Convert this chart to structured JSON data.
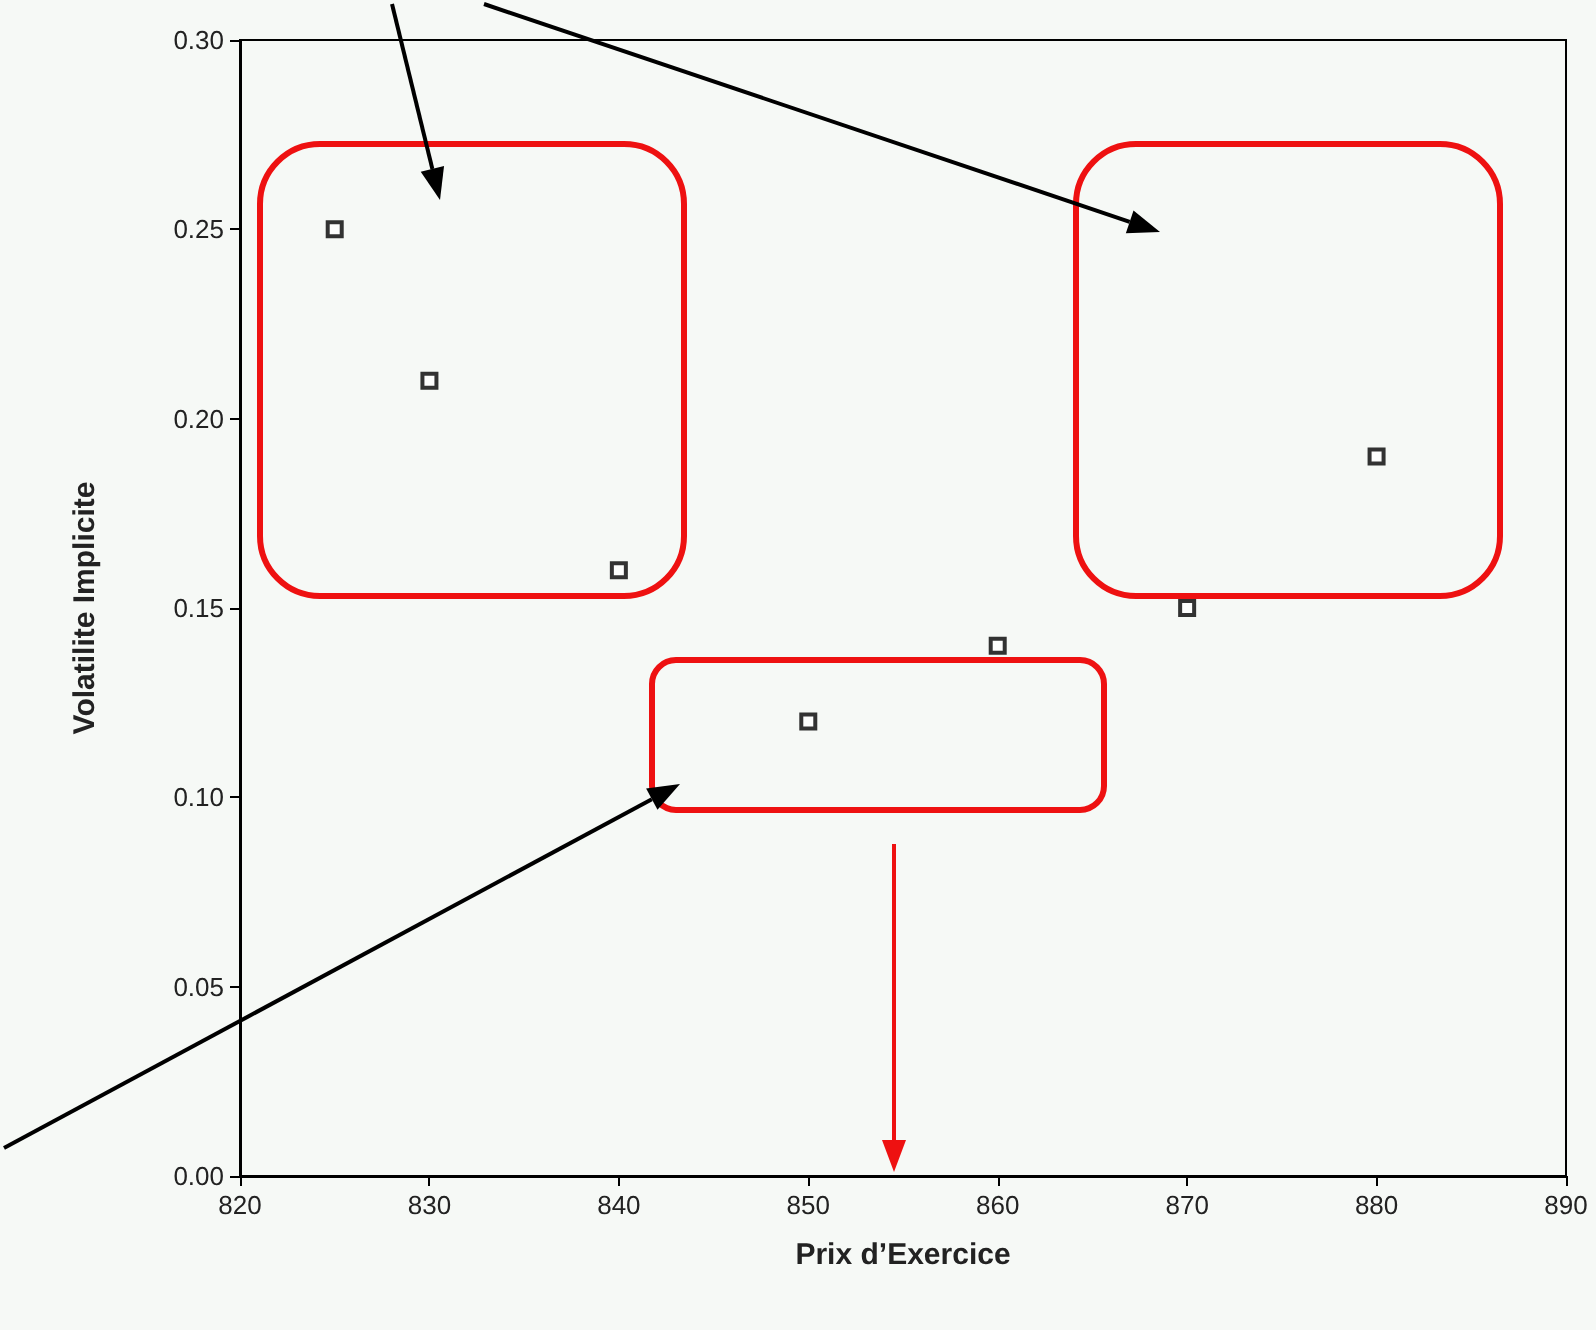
{
  "chart_data": {
    "type": "scatter",
    "xlabel": "Prix d’Exercice",
    "ylabel": "Volatilite Implicite",
    "x": [
      825,
      830,
      840,
      850,
      860,
      870,
      880
    ],
    "series": [
      {
        "color": "#000000",
        "values": [
          0.25,
          0.21,
          0.16,
          0.12,
          0.14,
          0.15,
          0.19
        ]
      }
    ],
    "xlim": [
      820,
      890
    ],
    "xticks": [
      820,
      830,
      840,
      850,
      860,
      870,
      880,
      890
    ],
    "ylim": [
      0,
      0.3
    ],
    "yticks": [
      {
        "value": 0,
        "label": "0.00"
      },
      {
        "value": 0.05,
        "label": "0.05"
      },
      {
        "value": 0.1,
        "label": "0.10"
      },
      {
        "value": 0.15,
        "label": "0.15"
      },
      {
        "value": 0.2,
        "label": "0.20"
      },
      {
        "value": 0.25,
        "label": "0.25"
      },
      {
        "value": 0.3,
        "label": "0.30"
      }
    ],
    "grid": false,
    "marker": "square"
  }
}
